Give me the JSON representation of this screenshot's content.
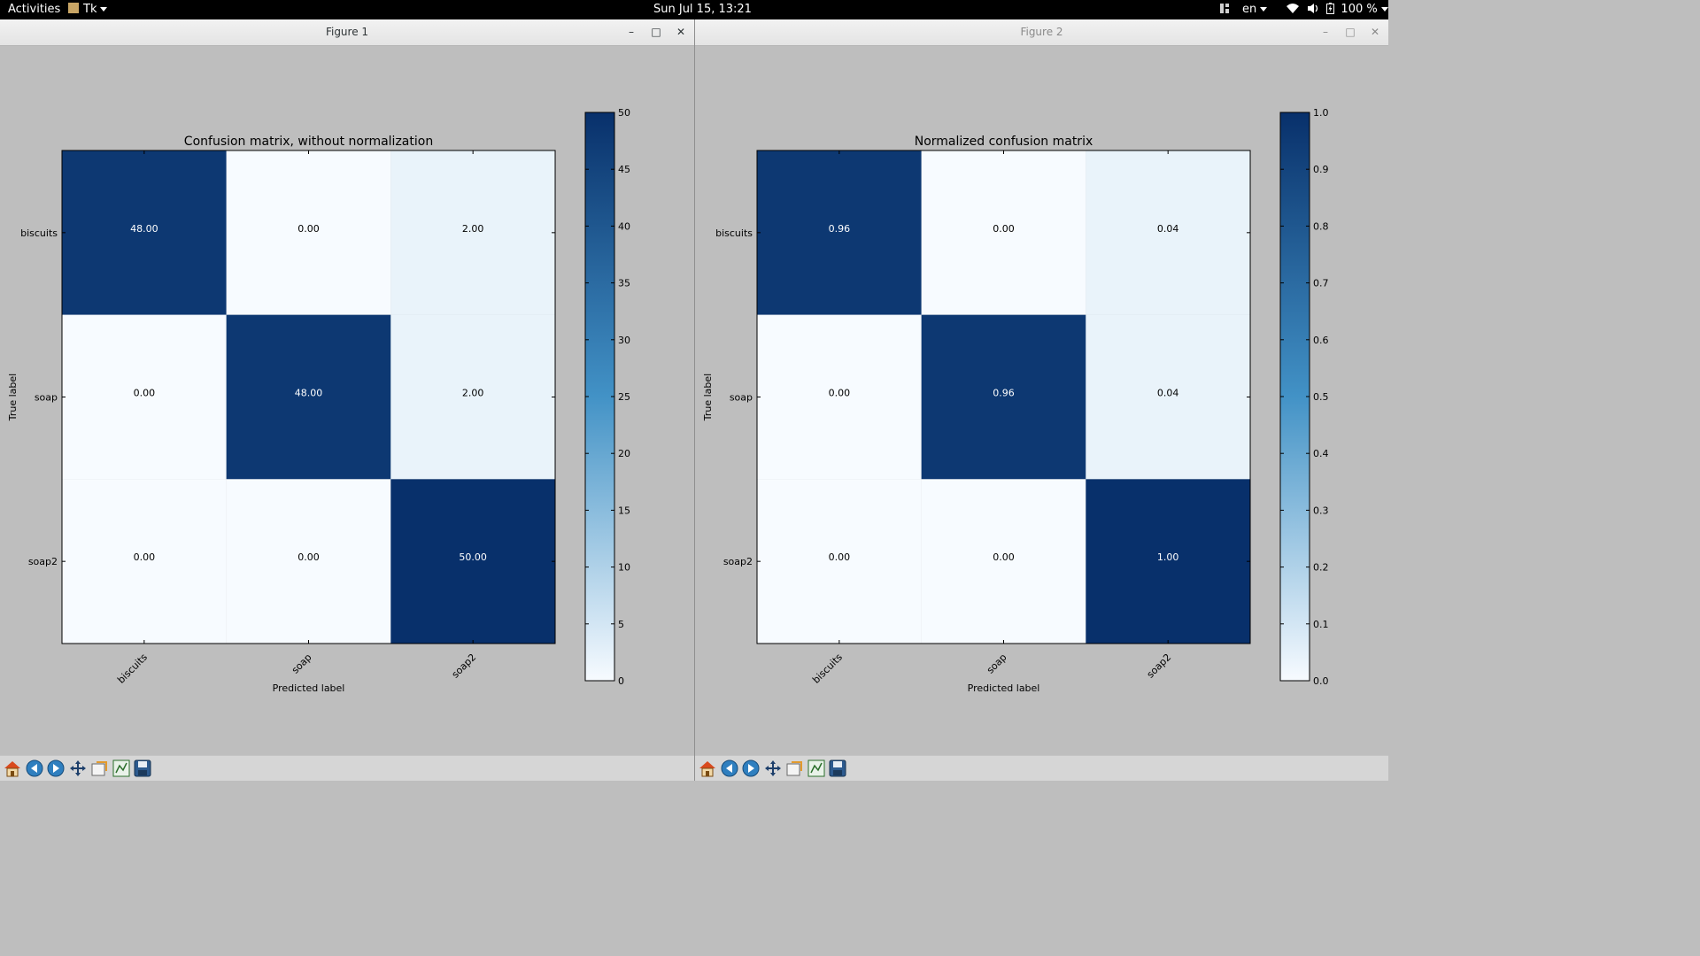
{
  "topbar": {
    "activities": "Activities",
    "app_name": "Tk",
    "clock": "Sun Jul 15, 13:21",
    "keyboard_layout": "en",
    "battery": "100 %"
  },
  "windows": [
    {
      "title": "Figure 1",
      "active": true,
      "chart_data": {
        "type": "heatmap",
        "title": "Confusion matrix, without normalization",
        "xlabel": "Predicted label",
        "ylabel": "True label",
        "x_categories": [
          "biscuits",
          "soap",
          "soap2"
        ],
        "y_categories": [
          "biscuits",
          "soap",
          "soap2"
        ],
        "values": [
          [
            48,
            0,
            2
          ],
          [
            0,
            48,
            2
          ],
          [
            0,
            0,
            50
          ]
        ],
        "cell_labels": [
          [
            "48.00",
            "0.00",
            "2.00"
          ],
          [
            "0.00",
            "48.00",
            "2.00"
          ],
          [
            "0.00",
            "0.00",
            "50.00"
          ]
        ],
        "vmin": 0,
        "vmax": 50,
        "colormap": "Blues",
        "colorbar_ticks": [
          "0",
          "5",
          "10",
          "15",
          "20",
          "25",
          "30",
          "35",
          "40",
          "45",
          "50"
        ]
      }
    },
    {
      "title": "Figure 2",
      "active": false,
      "chart_data": {
        "type": "heatmap",
        "title": "Normalized confusion matrix",
        "xlabel": "Predicted label",
        "ylabel": "True label",
        "x_categories": [
          "biscuits",
          "soap",
          "soap2"
        ],
        "y_categories": [
          "biscuits",
          "soap",
          "soap2"
        ],
        "values": [
          [
            0.96,
            0,
            0.04
          ],
          [
            0,
            0.96,
            0.04
          ],
          [
            0,
            0,
            1.0
          ]
        ],
        "cell_labels": [
          [
            "0.96",
            "0.00",
            "0.04"
          ],
          [
            "0.00",
            "0.96",
            "0.04"
          ],
          [
            "0.00",
            "0.00",
            "1.00"
          ]
        ],
        "vmin": 0,
        "vmax": 1,
        "colormap": "Blues",
        "colorbar_ticks": [
          "0.0",
          "0.1",
          "0.2",
          "0.3",
          "0.4",
          "0.5",
          "0.6",
          "0.7",
          "0.8",
          "0.9",
          "1.0"
        ]
      }
    }
  ],
  "toolbar_icons": [
    "home-icon",
    "back-icon",
    "forward-icon",
    "pan-icon",
    "zoom-icon",
    "configure-subplots-icon",
    "save-icon"
  ],
  "colors": {
    "cmap_dark": "#08306b",
    "cmap_light": "#f7fbff",
    "figure_bg": "#bebebe",
    "topbar_bg": "#000000"
  }
}
